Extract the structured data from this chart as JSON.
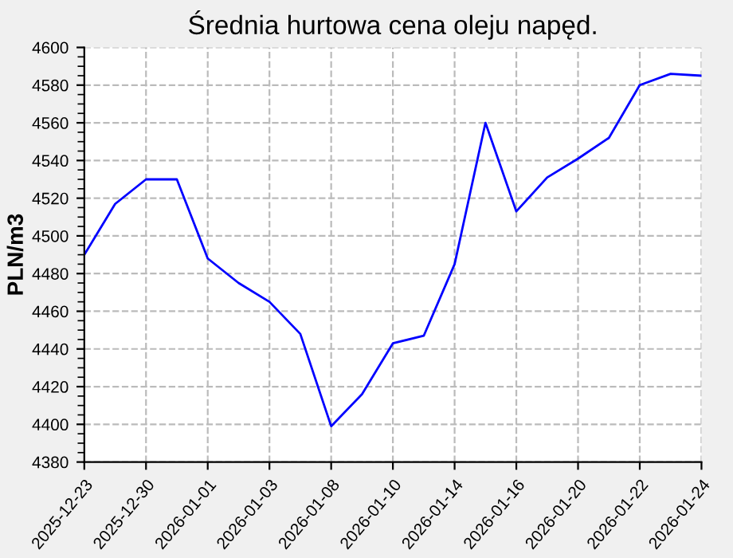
{
  "chart_data": {
    "type": "line",
    "title": "Średnia hurtowa cena oleju napęd.",
    "ylabel": "PLN/m3",
    "categories": [
      "2025-12-23",
      null,
      "2025-12-30",
      null,
      "2026-01-01",
      null,
      "2026-01-03",
      null,
      "2026-01-08",
      null,
      "2026-01-10",
      null,
      "2026-01-14",
      null,
      "2026-01-16",
      null,
      "2026-01-20",
      null,
      "2026-01-22",
      null,
      "2026-01-24"
    ],
    "series": [
      {
        "color": "#0000ff",
        "values": [
          4490,
          4517,
          4530,
          4530,
          4488,
          4475,
          4465,
          4448,
          4399,
          4416,
          4443,
          4447,
          4485,
          4560,
          4513,
          4531,
          4541,
          4552,
          4580,
          4586,
          4585
        ]
      }
    ],
    "ylim": [
      4380,
      4600
    ],
    "yticks": [
      4380,
      4400,
      4420,
      4440,
      4460,
      4480,
      4500,
      4520,
      4540,
      4560,
      4580,
      4600
    ],
    "grid": true,
    "marker": "none",
    "line_style": "solid"
  }
}
